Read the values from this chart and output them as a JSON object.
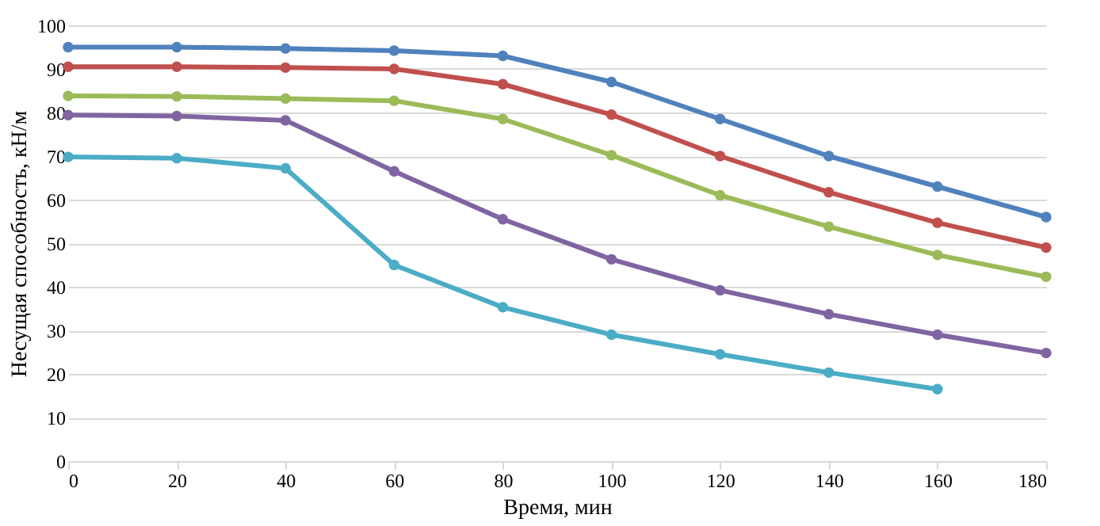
{
  "chart_data": {
    "type": "line",
    "xlabel": "Время, мин",
    "ylabel": "Несущая способность, кН/м",
    "x": [
      0,
      20,
      40,
      60,
      80,
      100,
      120,
      140,
      160,
      180
    ],
    "series": [
      {
        "color": "#4f81bd",
        "values": [
          95,
          95,
          94.7,
          94.2,
          93,
          87,
          78.5,
          70,
          63,
          56
        ]
      },
      {
        "color": "#c0504d",
        "values": [
          90.5,
          90.5,
          90.3,
          90,
          86.5,
          79.5,
          70,
          61.7,
          54.7,
          49
        ]
      },
      {
        "color": "#9bbb59",
        "values": [
          83.8,
          83.7,
          83.2,
          82.7,
          78.5,
          70.2,
          61,
          53.8,
          47.3,
          42.3
        ]
      },
      {
        "color": "#8064a2",
        "values": [
          79.4,
          79.2,
          78.2,
          66.5,
          55.5,
          46.3,
          39.2,
          33.7,
          29,
          24.8
        ]
      },
      {
        "color": "#4bacc6",
        "values": [
          69.8,
          69.5,
          67.2,
          45,
          35.3,
          29,
          24.5,
          20.3,
          16.5,
          null
        ]
      }
    ],
    "xlim": [
      0,
      180
    ],
    "xticks": [
      0,
      20,
      40,
      60,
      80,
      100,
      120,
      140,
      160,
      180
    ],
    "ylim": [
      0,
      100
    ],
    "yticks": [
      0,
      10,
      20,
      30,
      40,
      50,
      60,
      70,
      80,
      90,
      100
    ],
    "grid": "y",
    "legend": false,
    "marker": "circle",
    "line_style": "solid"
  }
}
